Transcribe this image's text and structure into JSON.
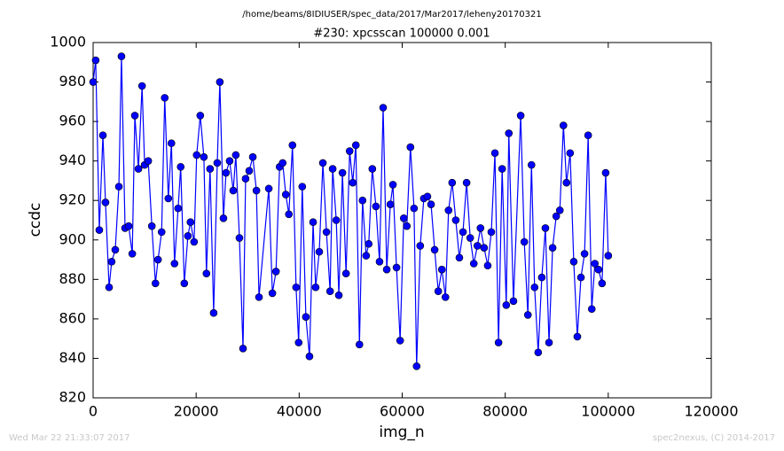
{
  "chart_data": {
    "type": "line",
    "suptitle": "/home/beams/8IDIUSER/spec_data/2017/Mar2017/leheny20170321",
    "title": "#230: xpcsscan 100000 0.001",
    "xlabel": "img_n",
    "ylabel": "ccdc",
    "footer_left": "Wed Mar 22 21:33:07 2017",
    "footer_right": "spec2nexus, (C) 2014-2017",
    "color": "#0000ff",
    "marker": true,
    "grid": false,
    "xlim": [
      0,
      120000
    ],
    "xticks": [
      0,
      20000,
      40000,
      60000,
      80000,
      100000,
      120000
    ],
    "ylim": [
      820,
      1000
    ],
    "yticks": [
      820,
      840,
      860,
      880,
      900,
      920,
      940,
      960,
      980,
      1000
    ],
    "x": [
      0,
      500,
      1200,
      1900,
      2400,
      3100,
      3600,
      4300,
      5000,
      5500,
      6200,
      6900,
      7600,
      8100,
      8800,
      9500,
      10000,
      10700,
      11400,
      12100,
      12600,
      13300,
      13900,
      14600,
      15200,
      15800,
      16500,
      17000,
      17700,
      18400,
      18900,
      19600,
      20100,
      20800,
      21500,
      22000,
      22700,
      23400,
      24100,
      24600,
      25300,
      25800,
      26500,
      27200,
      27700,
      28400,
      29100,
      29600,
      30300,
      31000,
      31700,
      32200,
      34100,
      34800,
      35500,
      36200,
      36800,
      37400,
      38000,
      38700,
      39400,
      39900,
      40600,
      41300,
      42000,
      42700,
      43200,
      43900,
      44600,
      45300,
      46000,
      46500,
      47200,
      47700,
      48400,
      49100,
      49800,
      50400,
      51000,
      51700,
      52300,
      53000,
      53500,
      54200,
      54900,
      55600,
      56300,
      57000,
      57700,
      58200,
      58900,
      59600,
      60300,
      60900,
      61600,
      62300,
      62800,
      63500,
      64200,
      64900,
      65600,
      66300,
      67000,
      67700,
      68400,
      69000,
      69700,
      70400,
      71100,
      71800,
      72500,
      73200,
      73900,
      74600,
      75200,
      75900,
      76600,
      77300,
      78000,
      78700,
      79400,
      80200,
      80700,
      81600,
      83000,
      83700,
      84400,
      85100,
      85700,
      86400,
      87100,
      87800,
      88500,
      89200,
      89900,
      90600,
      91300,
      91900,
      92600,
      93300,
      94000,
      94700,
      95400,
      96100,
      96800,
      97400,
      98100,
      98800,
      99500,
      100000
    ],
    "values": [
      980,
      991,
      905,
      953,
      919,
      876,
      889,
      895,
      927,
      993,
      906,
      907,
      893,
      963,
      936,
      978,
      938,
      940,
      907,
      878,
      890,
      904,
      972,
      921,
      949,
      888,
      916,
      937,
      878,
      902,
      909,
      899,
      943,
      963,
      942,
      883,
      936,
      863,
      939,
      980,
      911,
      934,
      940,
      925,
      943,
      901,
      845,
      931,
      935,
      942,
      925,
      871,
      926,
      873,
      884,
      937,
      939,
      923,
      913,
      948,
      876,
      848,
      927,
      861,
      841,
      909,
      876,
      894,
      939,
      904,
      874,
      936,
      910,
      872,
      934,
      883,
      945,
      929,
      948,
      847,
      920,
      892,
      898,
      936,
      917,
      889,
      967,
      885,
      918,
      928,
      886,
      849,
      911,
      907,
      947,
      916,
      836,
      897,
      921,
      922,
      918,
      895,
      874,
      885,
      871,
      915,
      929,
      910,
      891,
      904,
      929,
      901,
      888,
      897,
      906,
      896,
      887,
      904,
      944,
      848,
      936,
      867,
      954,
      869,
      963,
      899,
      862,
      938,
      876,
      843,
      881,
      906,
      848,
      896,
      912,
      915,
      958,
      929,
      944,
      889,
      851,
      881,
      893,
      953,
      865,
      888,
      885,
      878,
      934,
      892
    ]
  }
}
